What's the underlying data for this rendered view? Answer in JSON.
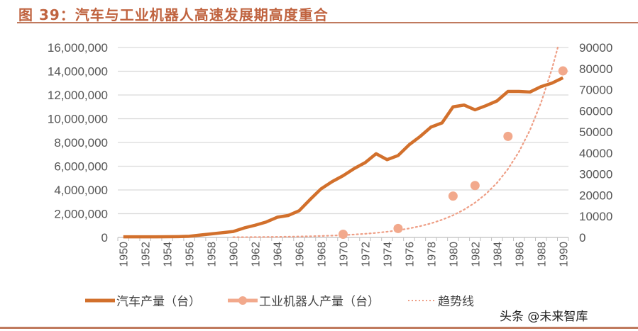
{
  "title": "图 39：汽车与工业机器人高速发展期高度重合",
  "watermark": "头条 @未来智库",
  "colors": {
    "title": "#C0633F",
    "car": "#D2702C",
    "robot": "#F2A98C",
    "trend": "#EE9E85",
    "grid": "#D9D9D9"
  },
  "chart_data": {
    "type": "line",
    "title": "",
    "x": [
      1950,
      1951,
      1952,
      1953,
      1954,
      1955,
      1956,
      1957,
      1958,
      1959,
      1960,
      1961,
      1962,
      1963,
      1964,
      1965,
      1966,
      1967,
      1968,
      1969,
      1970,
      1971,
      1972,
      1973,
      1974,
      1975,
      1976,
      1977,
      1978,
      1979,
      1980,
      1981,
      1982,
      1983,
      1984,
      1985,
      1986,
      1987,
      1988,
      1989,
      1990
    ],
    "x_tick_labels": [
      "1950",
      "1952",
      "1954",
      "1956",
      "1958",
      "1960",
      "1962",
      "1964",
      "1966",
      "1968",
      "1970",
      "1972",
      "1974",
      "1976",
      "1978",
      "1980",
      "1982",
      "1984",
      "1986",
      "1988",
      "1990"
    ],
    "y_left": {
      "ylim": [
        0,
        16000000
      ],
      "tick_labels": [
        "0",
        "2,000,000",
        "4,000,000",
        "6,000,000",
        "8,000,000",
        "10,000,000",
        "12,000,000",
        "14,000,000",
        "16,000,000"
      ]
    },
    "y_right": {
      "ylim": [
        0,
        90000
      ],
      "tick_labels": [
        "0",
        "10000",
        "20000",
        "30000",
        "40000",
        "50000",
        "60000",
        "70000",
        "80000",
        "90000"
      ]
    },
    "grid": true,
    "legend_placement": "bottom",
    "series": [
      {
        "name": "汽车产量（台）",
        "axis": "left",
        "style": "line",
        "values": [
          50000,
          50000,
          50000,
          50000,
          60000,
          70000,
          100000,
          200000,
          300000,
          400000,
          500000,
          800000,
          1030000,
          1300000,
          1700000,
          1850000,
          2250000,
          3200000,
          4100000,
          4700000,
          5200000,
          5800000,
          6300000,
          7050000,
          6550000,
          6900000,
          7800000,
          8500000,
          9300000,
          9650000,
          11000000,
          11150000,
          10750000,
          11100000,
          11500000,
          12300000,
          12300000,
          12250000,
          12700000,
          13000000,
          13450000
        ]
      },
      {
        "name": "工业机器人产量（台）",
        "axis": "right",
        "style": "markers",
        "x": [
          1970,
          1975,
          1980,
          1982,
          1985,
          1990
        ],
        "values": [
          1500,
          4250,
          19600,
          24600,
          47900,
          78900
        ]
      },
      {
        "name": "趋势线",
        "axis": "right",
        "style": "dotted",
        "x": [
          1960,
          1961,
          1962,
          1963,
          1964,
          1965,
          1966,
          1967,
          1968,
          1969,
          1970,
          1971,
          1972,
          1973,
          1974,
          1975,
          1976,
          1977,
          1978,
          1979,
          1980,
          1981,
          1982,
          1983,
          1984,
          1985,
          1986,
          1987,
          1988,
          1989
        ],
        "values": [
          115,
          144,
          181,
          227,
          284,
          356,
          446,
          559,
          701,
          878,
          1100,
          1378,
          1727,
          2164,
          2711,
          3397,
          4257,
          5334,
          6683,
          8374,
          10493,
          13148,
          16474,
          20642,
          25864,
          32408,
          40607,
          50880,
          63753,
          79883
        ]
      }
    ]
  }
}
